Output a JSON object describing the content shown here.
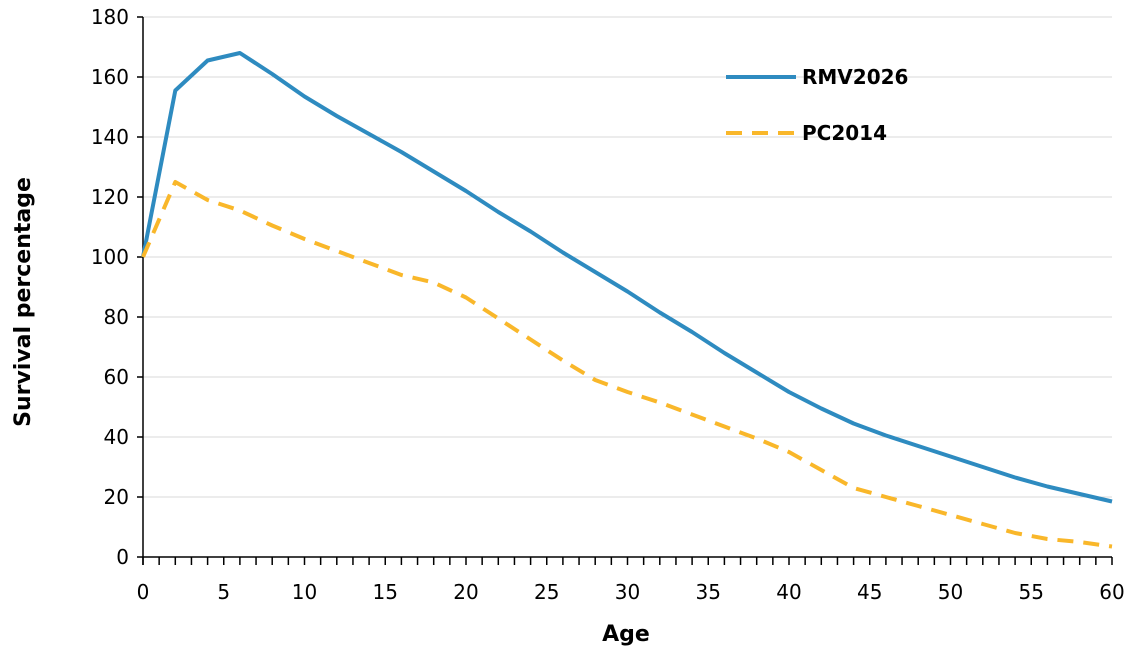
{
  "chart_data": {
    "type": "line",
    "title": "",
    "xlabel": "Age",
    "ylabel": "Survival percentage",
    "xlim": [
      0,
      60
    ],
    "ylim": [
      0,
      180
    ],
    "x_ticks": [
      0,
      5,
      10,
      15,
      20,
      25,
      30,
      35,
      40,
      45,
      50,
      55,
      60
    ],
    "y_ticks": [
      0,
      20,
      40,
      60,
      80,
      100,
      120,
      140,
      160,
      180
    ],
    "grid": "horizontal",
    "legend_position": "top-right",
    "series": [
      {
        "name": "RMV2026",
        "color": "#2e8bc0",
        "line_style": "solid",
        "x": [
          0,
          2,
          4,
          6,
          8,
          10,
          12,
          14,
          16,
          18,
          20,
          22,
          24,
          26,
          28,
          30,
          32,
          34,
          36,
          38,
          40,
          42,
          44,
          46,
          48,
          50,
          52,
          54,
          56,
          58,
          60
        ],
        "y": [
          100,
          155.5,
          165.5,
          168,
          161,
          153.5,
          147,
          141,
          135,
          128.5,
          122,
          115,
          108.5,
          101.5,
          95,
          88.5,
          81.5,
          75,
          68,
          61.5,
          55,
          49.5,
          44.5,
          40.5,
          37,
          33.5,
          30,
          26.5,
          23.5,
          21,
          18.5
        ]
      },
      {
        "name": "PC2014",
        "color": "#f9b72a",
        "line_style": "dashed",
        "x": [
          0,
          2,
          4,
          6,
          8,
          10,
          12,
          14,
          16,
          18,
          20,
          22,
          24,
          26,
          28,
          30,
          32,
          34,
          36,
          38,
          40,
          42,
          44,
          46,
          48,
          50,
          52,
          54,
          56,
          58,
          60
        ],
        "y": [
          100,
          125,
          119,
          115.5,
          110.5,
          106,
          102,
          98,
          94,
          91.5,
          86.5,
          79.5,
          72.5,
          65.5,
          59,
          55,
          51.5,
          47.5,
          43.5,
          39.5,
          35,
          29,
          23,
          20,
          17,
          14,
          11,
          8,
          6,
          5,
          3.5
        ]
      }
    ]
  }
}
